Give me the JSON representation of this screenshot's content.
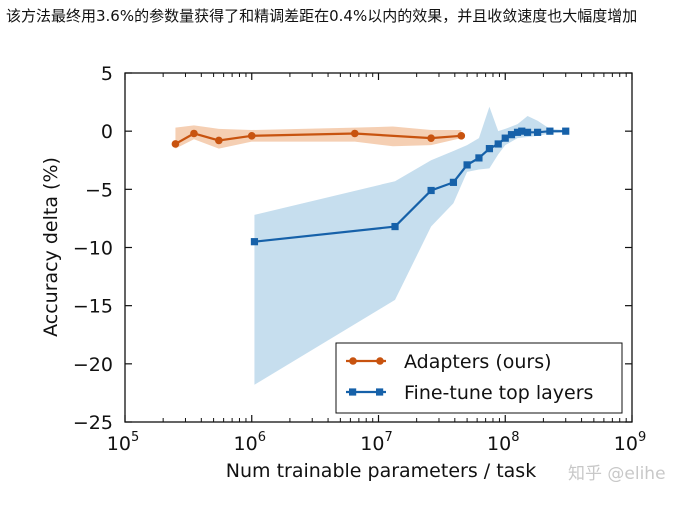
{
  "caption": "该方法最终用3.6%的参数量获得了和精调差距在0.4%以内的效果，并且收敛速度也大幅度增加",
  "watermark": "知乎 @elihe",
  "chart_data": {
    "type": "line",
    "title": "",
    "xlabel": "Num trainable parameters / task",
    "ylabel": "Accuracy delta (%)",
    "xscale": "log",
    "xlim": [
      100000,
      1000000000
    ],
    "ylim": [
      -25,
      5
    ],
    "xticks": [
      100000,
      1000000,
      10000000,
      100000000,
      1000000000
    ],
    "xtick_labels": [
      {
        "base": "10",
        "exp": "5"
      },
      {
        "base": "10",
        "exp": "6"
      },
      {
        "base": "10",
        "exp": "7"
      },
      {
        "base": "10",
        "exp": "8"
      },
      {
        "base": "10",
        "exp": "9"
      }
    ],
    "yticks": [
      5,
      0,
      -5,
      -10,
      -15,
      -20,
      -25
    ],
    "ytick_labels": [
      "5",
      "0",
      "−5",
      "−10",
      "−15",
      "−20",
      "−25"
    ],
    "grid": false,
    "legend_position": "lower-right",
    "series": [
      {
        "name": "Adapters (ours)",
        "color": "#c8530f",
        "band_color": "#f3c7a6",
        "marker": "circle",
        "x": [
          250000,
          350000,
          550000,
          1000000,
          6500000,
          26000000,
          45000000
        ],
        "y": [
          -1.1,
          -0.2,
          -0.8,
          -0.4,
          -0.2,
          -0.6,
          -0.4
        ],
        "band_x": [
          250000,
          350000,
          550000,
          1000000,
          6500000,
          13000000,
          26000000,
          45000000
        ],
        "band_upper": [
          0.3,
          0.5,
          0.2,
          0.1,
          0.3,
          0.4,
          0.1,
          0.1
        ],
        "band_lower": [
          -1.5,
          -0.7,
          -1.5,
          -0.9,
          -0.9,
          -1.3,
          -1.2,
          -0.6
        ]
      },
      {
        "name": "Fine-tune top layers",
        "color": "#1661a9",
        "band_color": "#bcd8eb",
        "marker": "square",
        "x": [
          1050000,
          13500000,
          26000000,
          39000000,
          50000000,
          62000000,
          75000000,
          88000000,
          100000000,
          112000000,
          125000000,
          135000000,
          150000000,
          180000000,
          225000000,
          300000000
        ],
        "y": [
          -9.5,
          -8.2,
          -5.1,
          -4.4,
          -2.9,
          -2.3,
          -1.5,
          -1.1,
          -0.6,
          -0.3,
          -0.1,
          0.0,
          -0.1,
          -0.1,
          0.0,
          0.0
        ],
        "band_x": [
          1050000,
          13500000,
          26000000,
          39000000,
          50000000,
          62000000,
          75000000,
          88000000,
          100000000,
          112000000,
          125000000,
          150000000,
          180000000,
          225000000,
          300000000
        ],
        "band_upper": [
          -7.2,
          -4.3,
          -2.5,
          -1.7,
          -1.2,
          -0.6,
          2.1,
          0.0,
          0.2,
          0.4,
          0.6,
          1.3,
          0.9,
          0.2,
          0.1
        ],
        "band_lower": [
          -21.8,
          -14.5,
          -8.2,
          -6.2,
          -3.5,
          -3.3,
          -3.2,
          -2.0,
          -1.2,
          -0.9,
          -0.6,
          -0.5,
          -0.4,
          -0.2,
          -0.1
        ]
      }
    ]
  }
}
